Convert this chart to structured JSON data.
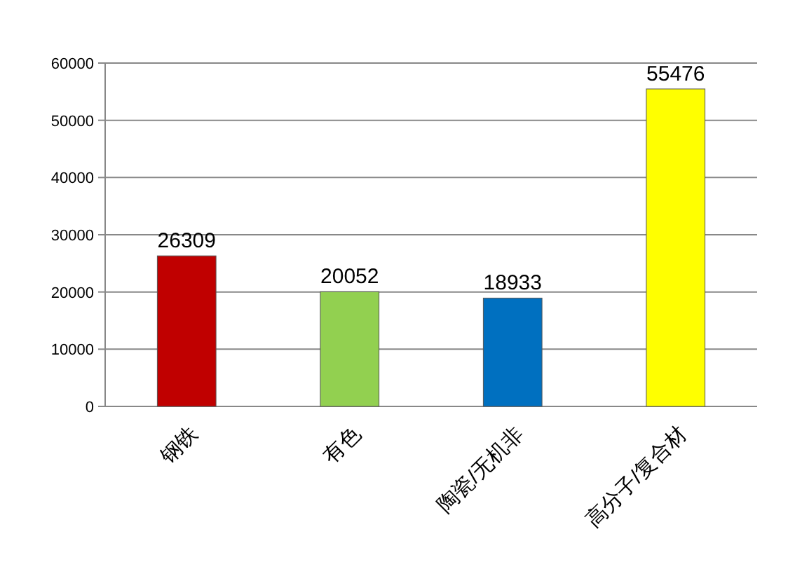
{
  "chart_data": {
    "type": "bar",
    "categories": [
      "钢铁",
      "有色",
      "陶瓷/无机非",
      "高分子/复合材"
    ],
    "values": [
      26309,
      20052,
      18933,
      55476
    ],
    "colors": [
      "#c00000",
      "#92d050",
      "#0070c0",
      "#ffff00"
    ],
    "ylim": [
      0,
      60000
    ],
    "yticks": [
      0,
      10000,
      20000,
      30000,
      40000,
      50000,
      60000
    ],
    "grid": "y",
    "data_labels": true
  }
}
